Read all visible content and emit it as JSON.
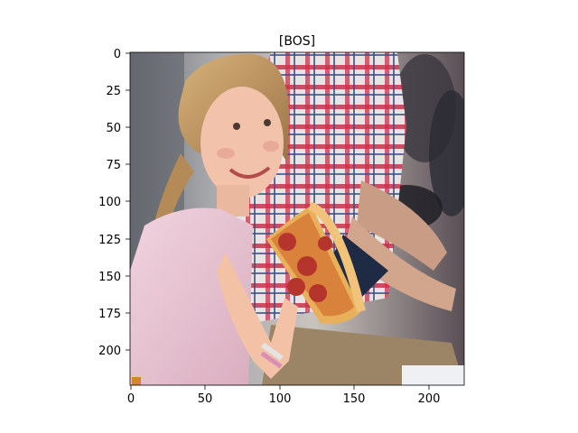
{
  "figure": {
    "title": "[BOS]"
  },
  "axes": {
    "x_ticks": [
      "0",
      "50",
      "100",
      "150",
      "200"
    ],
    "y_ticks": [
      "0",
      "25",
      "50",
      "75",
      "100",
      "125",
      "150",
      "175",
      "200"
    ]
  },
  "image": {
    "description_icon": "photo-girl-eating-pizza-icon"
  }
}
